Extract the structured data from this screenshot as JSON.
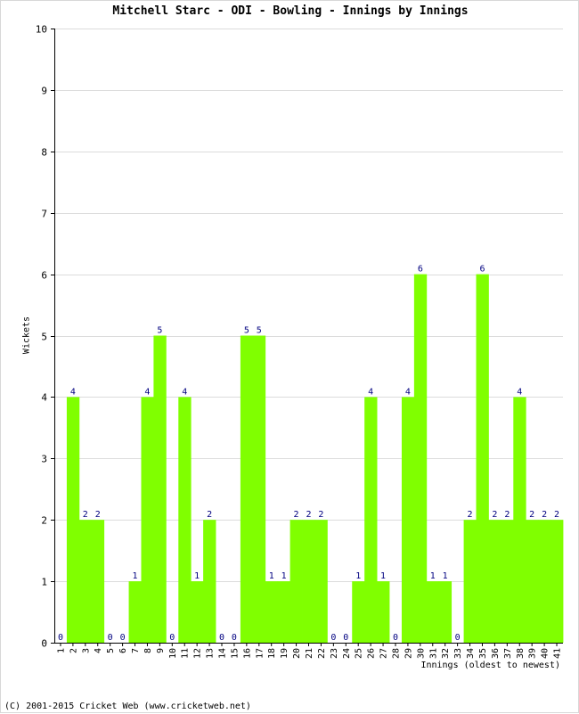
{
  "chart_data": {
    "type": "bar",
    "title": "Mitchell Starc - ODI - Bowling - Innings by Innings",
    "xlabel": "Innings (oldest to newest)",
    "ylabel": "Wickets",
    "categories": [
      "1",
      "2",
      "3",
      "4",
      "5",
      "6",
      "7",
      "8",
      "9",
      "10",
      "11",
      "12",
      "13",
      "14",
      "15",
      "16",
      "17",
      "18",
      "19",
      "20",
      "21",
      "22",
      "23",
      "24",
      "25",
      "26",
      "27",
      "28",
      "29",
      "30",
      "31",
      "32",
      "33",
      "34",
      "35",
      "36",
      "37",
      "38",
      "39",
      "40",
      "41"
    ],
    "values": [
      0,
      4,
      2,
      2,
      0,
      0,
      1,
      4,
      5,
      0,
      4,
      1,
      2,
      0,
      0,
      5,
      5,
      1,
      1,
      2,
      2,
      2,
      0,
      0,
      1,
      4,
      1,
      0,
      4,
      6,
      1,
      1,
      0,
      2,
      6,
      2,
      2,
      4,
      2,
      2,
      2
    ],
    "ylim": [
      0,
      10
    ],
    "yticks": [
      0,
      1,
      2,
      3,
      4,
      5,
      6,
      7,
      8,
      9,
      10
    ],
    "grid": true,
    "bar_color": "#80ff00",
    "label_color": "#000080"
  },
  "footer": {
    "copyright": "(C) 2001-2015 Cricket Web (www.cricketweb.net)"
  }
}
